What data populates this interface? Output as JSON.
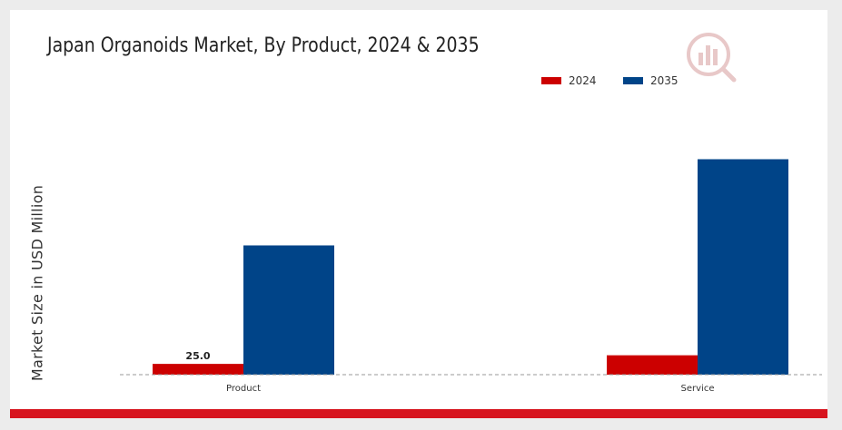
{
  "colors": {
    "series_2024": "#cc0000",
    "series_2035": "#004488",
    "brand_band": "#d7141e",
    "baseline": "#999999"
  },
  "chart_data": {
    "type": "bar",
    "title": "Japan Organoids Market, By Product, 2024 & 2035",
    "xlabel": "",
    "ylabel": "Market Size in USD Million",
    "categories": [
      "Product",
      "Service"
    ],
    "series": [
      {
        "name": "2024",
        "values": [
          25.0,
          45.0
        ],
        "color": "#cc0000"
      },
      {
        "name": "2035",
        "values": [
          300.0,
          500.0
        ],
        "color": "#004488"
      }
    ],
    "data_labels": [
      {
        "series": "2024",
        "category": "Product",
        "text": "25.0"
      }
    ],
    "ylim": [
      0,
      600
    ],
    "legend_position": "top-right",
    "grid": false,
    "baseline": "dashed"
  },
  "logo": {
    "icon": "market-research-logo-icon"
  }
}
